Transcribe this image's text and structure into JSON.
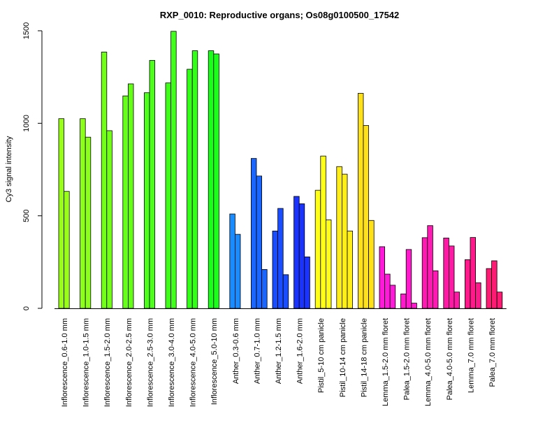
{
  "chart_data": {
    "type": "bar",
    "title": "RXP_0010: Reproductive organs; Os08g0100500_17542",
    "xlabel": "",
    "ylabel": "Cy3 signal intensity",
    "ylim": [
      0,
      1500
    ],
    "yticks": [
      0,
      500,
      1000,
      1500
    ],
    "grid": false,
    "groups": [
      {
        "label": "Inflorescence_0.6-1.0 mm",
        "color": "#99ff1a",
        "values": [
          1025,
          632
        ]
      },
      {
        "label": "Inflorescence_1.0-1.5 mm",
        "color": "#8cff1a",
        "values": [
          1025,
          925
        ]
      },
      {
        "label": "Inflorescence_1.5-2.0 mm",
        "color": "#73ff1a",
        "values": [
          1385,
          960
        ]
      },
      {
        "label": "Inflorescence_2.0-2.5 mm",
        "color": "#66ff1a",
        "values": [
          1148,
          1213
        ]
      },
      {
        "label": "Inflorescence_2.5-3.0 mm",
        "color": "#4dff1a",
        "values": [
          1165,
          1340
        ]
      },
      {
        "label": "Inflorescence_3.0-4.0 mm",
        "color": "#40ff1a",
        "values": [
          1218,
          1497
        ]
      },
      {
        "label": "Inflorescence_4.0-5.0 mm",
        "color": "#33ff1a",
        "values": [
          1292,
          1392
        ]
      },
      {
        "label": "Inflorescence_5.0-10 mm",
        "color": "#1aff1a",
        "values": [
          1392,
          1375
        ]
      },
      {
        "label": "Anther_0.3-0.6 mm",
        "color": "#1a8cff",
        "values": [
          510,
          400
        ]
      },
      {
        "label": "Anther_0.7-1.0 mm",
        "color": "#1a66ff",
        "values": [
          810,
          715,
          210
        ]
      },
      {
        "label": "Anther_1.2-1.5 mm",
        "color": "#1a4dff",
        "values": [
          418,
          540,
          182
        ]
      },
      {
        "label": "Anther_1.6-2.0 mm",
        "color": "#1a33ff",
        "values": [
          605,
          565,
          278
        ]
      },
      {
        "label": "Pistil_5-10 cm panicle",
        "color": "#ffff1a",
        "values": [
          638,
          823,
          478
        ]
      },
      {
        "label": "Pistil_10-14 cm panicle",
        "color": "#ffee1a",
        "values": [
          766,
          725,
          418
        ]
      },
      {
        "label": "Pistil_14-18 cm panicle",
        "color": "#ffe11a",
        "values": [
          1162,
          988,
          475
        ]
      },
      {
        "label": "Lemma_1.5-2.0 mm floret",
        "color": "#ff1ad9",
        "values": [
          333,
          185,
          125
        ]
      },
      {
        "label": "Palea_1.5-2.0 mm floret",
        "color": "#ff1acc",
        "values": [
          78,
          318,
          28
        ]
      },
      {
        "label": "Lemma_4.0-5.0 mm floret",
        "color": "#ff1ab3",
        "values": [
          382,
          447,
          203
        ]
      },
      {
        "label": "Palea_4.0-5.0 mm floret",
        "color": "#ff1aa6",
        "values": [
          380,
          337,
          88
        ]
      },
      {
        "label": "Lemma_7.0 mm floret",
        "color": "#ff1a8c",
        "values": [
          263,
          383,
          138
        ]
      },
      {
        "label": "Palea_7.0 mm floret",
        "color": "#ff1a73",
        "values": [
          215,
          257,
          88
        ]
      }
    ]
  }
}
